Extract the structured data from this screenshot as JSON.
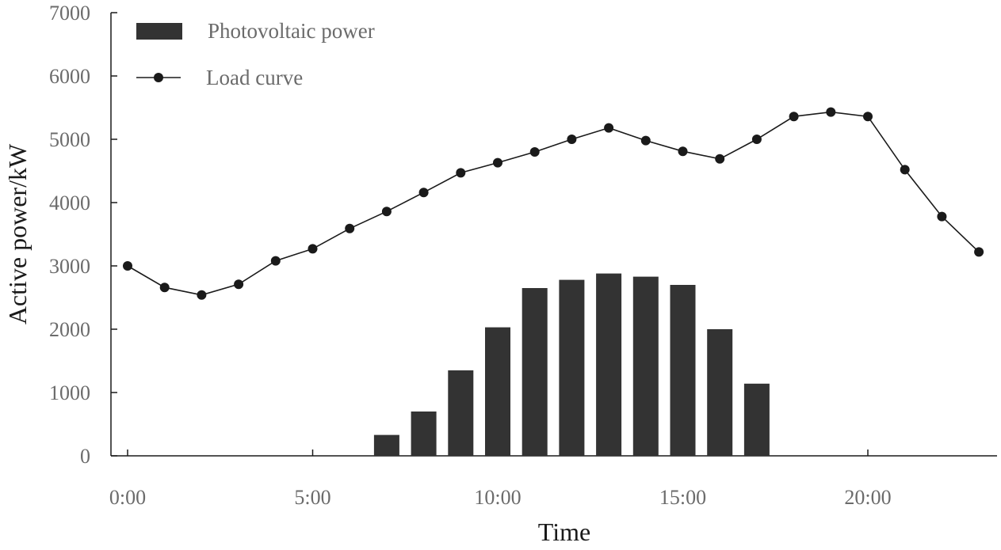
{
  "chart_data": {
    "type": "bar+line",
    "title": "",
    "xlabel": "Time",
    "ylabel": "Active power/kW",
    "ylim": [
      0,
      7000
    ],
    "y_ticks": [
      0,
      1000,
      2000,
      3000,
      4000,
      5000,
      6000,
      7000
    ],
    "x_tick_positions": [
      0,
      5,
      10,
      15,
      20
    ],
    "x_tick_labels": [
      "0:00",
      "5:00",
      "10:00",
      "15:00",
      "20:00"
    ],
    "grid": false,
    "legend_position": "top-left",
    "x": [
      0,
      1,
      2,
      3,
      4,
      5,
      6,
      7,
      8,
      9,
      10,
      11,
      12,
      13,
      14,
      15,
      16,
      17,
      18,
      19,
      20,
      21,
      22,
      23
    ],
    "series": [
      {
        "name": "Photovoltaic power",
        "kind": "bar",
        "color": "#333333",
        "values": [
          0,
          0,
          0,
          0,
          0,
          0,
          0,
          330,
          700,
          1350,
          2030,
          2650,
          2780,
          2880,
          2830,
          2700,
          2000,
          1140,
          0,
          0,
          0,
          0,
          0,
          0
        ]
      },
      {
        "name": "Load curve",
        "kind": "line",
        "color": "#1a1a1a",
        "values": [
          3000,
          2660,
          2540,
          2710,
          3080,
          3270,
          3590,
          3860,
          4160,
          4470,
          4630,
          4800,
          5000,
          5180,
          4980,
          4810,
          4690,
          5000,
          5360,
          5430,
          5360,
          4520,
          3780,
          3220
        ]
      }
    ]
  }
}
